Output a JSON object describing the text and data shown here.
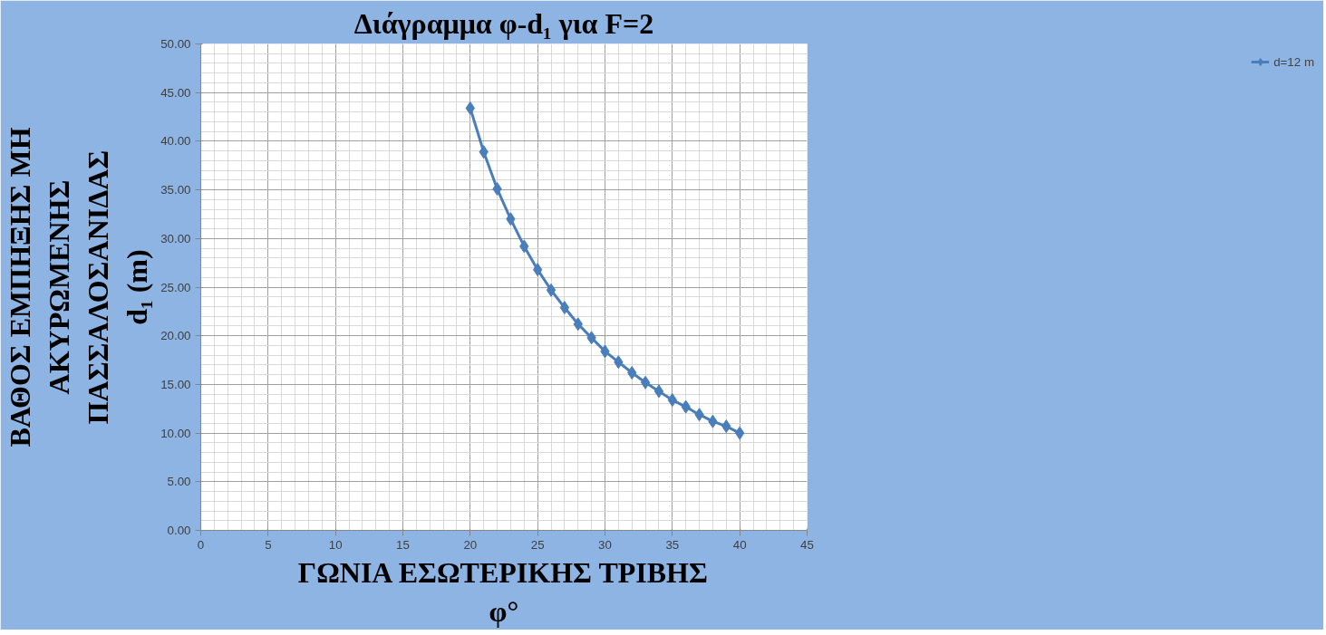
{
  "chart_data": {
    "type": "line",
    "title": "Διάγραμμα φ-d₁ για F=2",
    "xlabel": "ΓΩΝΙΑ ΕΣΩΤΕΡΙΚΗΣ ΤΡΙΒΗΣ\nφ°",
    "ylabel": "ΒΑΘΟΣ ΕΜΠΗΞΗΣ ΜΗ\nΑΚΥΡΩΜΕΝΗΣ\nΠΑΣΣΑΛΟΣΑΝΙΔΑΣ\nd₁ (m)",
    "x": [
      20,
      21,
      22,
      23,
      24,
      25,
      26,
      27,
      28,
      29,
      30,
      31,
      32,
      33,
      34,
      35,
      36,
      37,
      38,
      39,
      40
    ],
    "series": [
      {
        "name": "d=12 m",
        "color": "#4a7ebb",
        "values": [
          43.4,
          38.9,
          35.1,
          32.0,
          29.2,
          26.8,
          24.7,
          22.9,
          21.2,
          19.8,
          18.4,
          17.3,
          16.2,
          15.2,
          14.3,
          13.4,
          12.7,
          11.9,
          11.2,
          10.7,
          10.0
        ]
      }
    ],
    "xlim": [
      0,
      45
    ],
    "xticks": [
      0,
      5,
      10,
      15,
      20,
      25,
      30,
      35,
      40,
      45
    ],
    "ylim": [
      0,
      50
    ],
    "yticks": [
      {
        "value": 0,
        "label": "0.00"
      },
      {
        "value": 5,
        "label": "5.00"
      },
      {
        "value": 10,
        "label": "10.00"
      },
      {
        "value": 15,
        "label": "15.00"
      },
      {
        "value": 20,
        "label": "20.00"
      },
      {
        "value": 25,
        "label": "25.00"
      },
      {
        "value": 30,
        "label": "30.00"
      },
      {
        "value": 35,
        "label": "35.00"
      },
      {
        "value": 40,
        "label": "40.00"
      },
      {
        "value": 45,
        "label": "45.00"
      },
      {
        "value": 50,
        "label": "50.00"
      }
    ],
    "grid": true,
    "legend": "right",
    "marker": "diamond",
    "line_style": "solid"
  }
}
